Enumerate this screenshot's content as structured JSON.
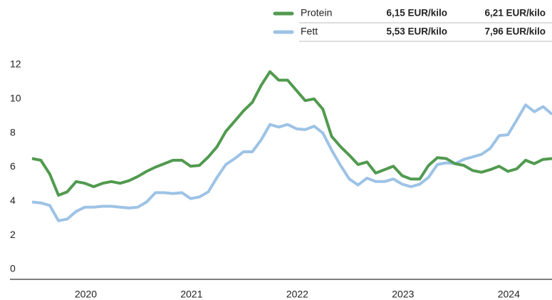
{
  "chart_data": {
    "type": "line",
    "x": [
      2019.5,
      2019.583,
      2019.667,
      2019.75,
      2019.833,
      2019.917,
      2020,
      2020.083,
      2020.167,
      2020.25,
      2020.333,
      2020.417,
      2020.5,
      2020.583,
      2020.667,
      2020.75,
      2020.833,
      2020.917,
      2021,
      2021.083,
      2021.167,
      2021.25,
      2021.333,
      2021.417,
      2021.5,
      2021.583,
      2021.667,
      2021.75,
      2021.833,
      2021.917,
      2022,
      2022.083,
      2022.167,
      2022.25,
      2022.333,
      2022.417,
      2022.5,
      2022.583,
      2022.667,
      2022.75,
      2022.833,
      2022.917,
      2023,
      2023.083,
      2023.167,
      2023.25,
      2023.333,
      2023.417,
      2023.5,
      2023.583,
      2023.667,
      2023.75,
      2023.833,
      2023.917,
      2024,
      2024.083,
      2024.167,
      2024.25,
      2024.333,
      2024.417
    ],
    "series": [
      {
        "name": "Protein",
        "color": "#519a4f",
        "legend_values": [
          "6,15 EUR/kilo",
          "6,21 EUR/kilo"
        ],
        "values": [
          6.5,
          6.4,
          5.6,
          4.35,
          4.55,
          5.15,
          5.05,
          4.85,
          5.05,
          5.15,
          5.05,
          5.2,
          5.45,
          5.75,
          6.0,
          6.2,
          6.4,
          6.4,
          6.05,
          6.1,
          6.6,
          7.2,
          8.1,
          8.7,
          9.3,
          9.8,
          10.8,
          11.6,
          11.1,
          11.1,
          10.5,
          9.9,
          10.0,
          9.4,
          7.8,
          7.2,
          6.7,
          6.15,
          6.3,
          5.65,
          5.85,
          6.05,
          5.5,
          5.3,
          5.3,
          6.1,
          6.55,
          6.5,
          6.2,
          6.1,
          5.8,
          5.7,
          5.85,
          6.05,
          5.75,
          5.9,
          6.4,
          6.2,
          6.45,
          6.5
        ]
      },
      {
        "name": "Fett",
        "color": "#9dc3e6",
        "legend_values": [
          "5,53 EUR/kilo",
          "7,96 EUR/kilo"
        ],
        "values": [
          3.95,
          3.9,
          3.75,
          2.85,
          2.95,
          3.4,
          3.65,
          3.65,
          3.7,
          3.7,
          3.65,
          3.6,
          3.65,
          3.95,
          4.5,
          4.5,
          4.45,
          4.5,
          4.15,
          4.25,
          4.55,
          5.4,
          6.15,
          6.5,
          6.9,
          6.9,
          7.6,
          8.5,
          8.35,
          8.5,
          8.25,
          8.2,
          8.4,
          8.0,
          7.0,
          6.1,
          5.3,
          4.95,
          5.35,
          5.15,
          5.15,
          5.3,
          5.0,
          4.85,
          5.0,
          5.4,
          6.15,
          6.25,
          6.2,
          6.45,
          6.6,
          6.75,
          7.1,
          7.85,
          7.9,
          8.75,
          9.65,
          9.25,
          9.55,
          9.1
        ]
      }
    ],
    "xlim": [
      2019.5,
      2024.417
    ],
    "xticks": [
      {
        "value": 2020.5,
        "label": "2020"
      },
      {
        "value": 2021.5,
        "label": "2021"
      },
      {
        "value": 2022.5,
        "label": "2022"
      },
      {
        "value": 2023.5,
        "label": "2023"
      },
      {
        "value": 2024.5,
        "label": "2024"
      }
    ],
    "ylim": [
      0,
      12
    ],
    "yticks": [
      0,
      2,
      4,
      6,
      8,
      10,
      12
    ],
    "legend": "top-right"
  }
}
